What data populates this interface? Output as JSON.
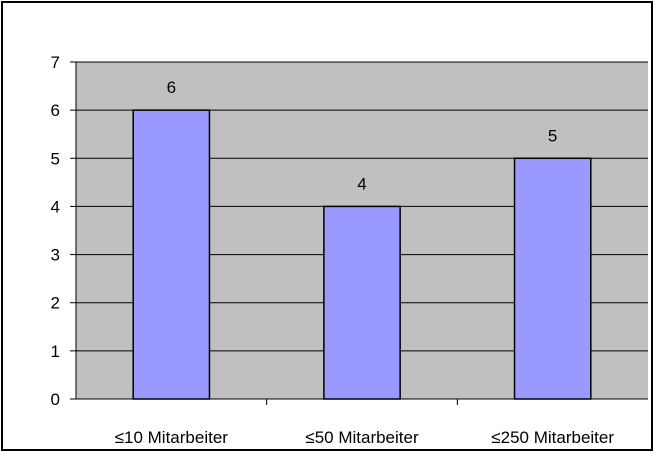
{
  "chart_data": {
    "type": "bar",
    "categories": [
      "≤10 Mitarbeiter",
      "≤50 Mitarbeiter",
      "≤250 Mitarbeiter"
    ],
    "values": [
      6,
      4,
      5
    ],
    "data_labels": [
      "6",
      "4",
      "5"
    ],
    "y_ticks": [
      "0",
      "1",
      "2",
      "3",
      "4",
      "5",
      "6",
      "7"
    ],
    "ylim": [
      0,
      7
    ],
    "grid": true,
    "legend": "none",
    "colors": {
      "plot_background": "#c0c0c0",
      "bar_fill": "#9999ff",
      "bar_stroke": "#000000",
      "gridline": "#000000",
      "chart_background": "#ffffff"
    }
  }
}
